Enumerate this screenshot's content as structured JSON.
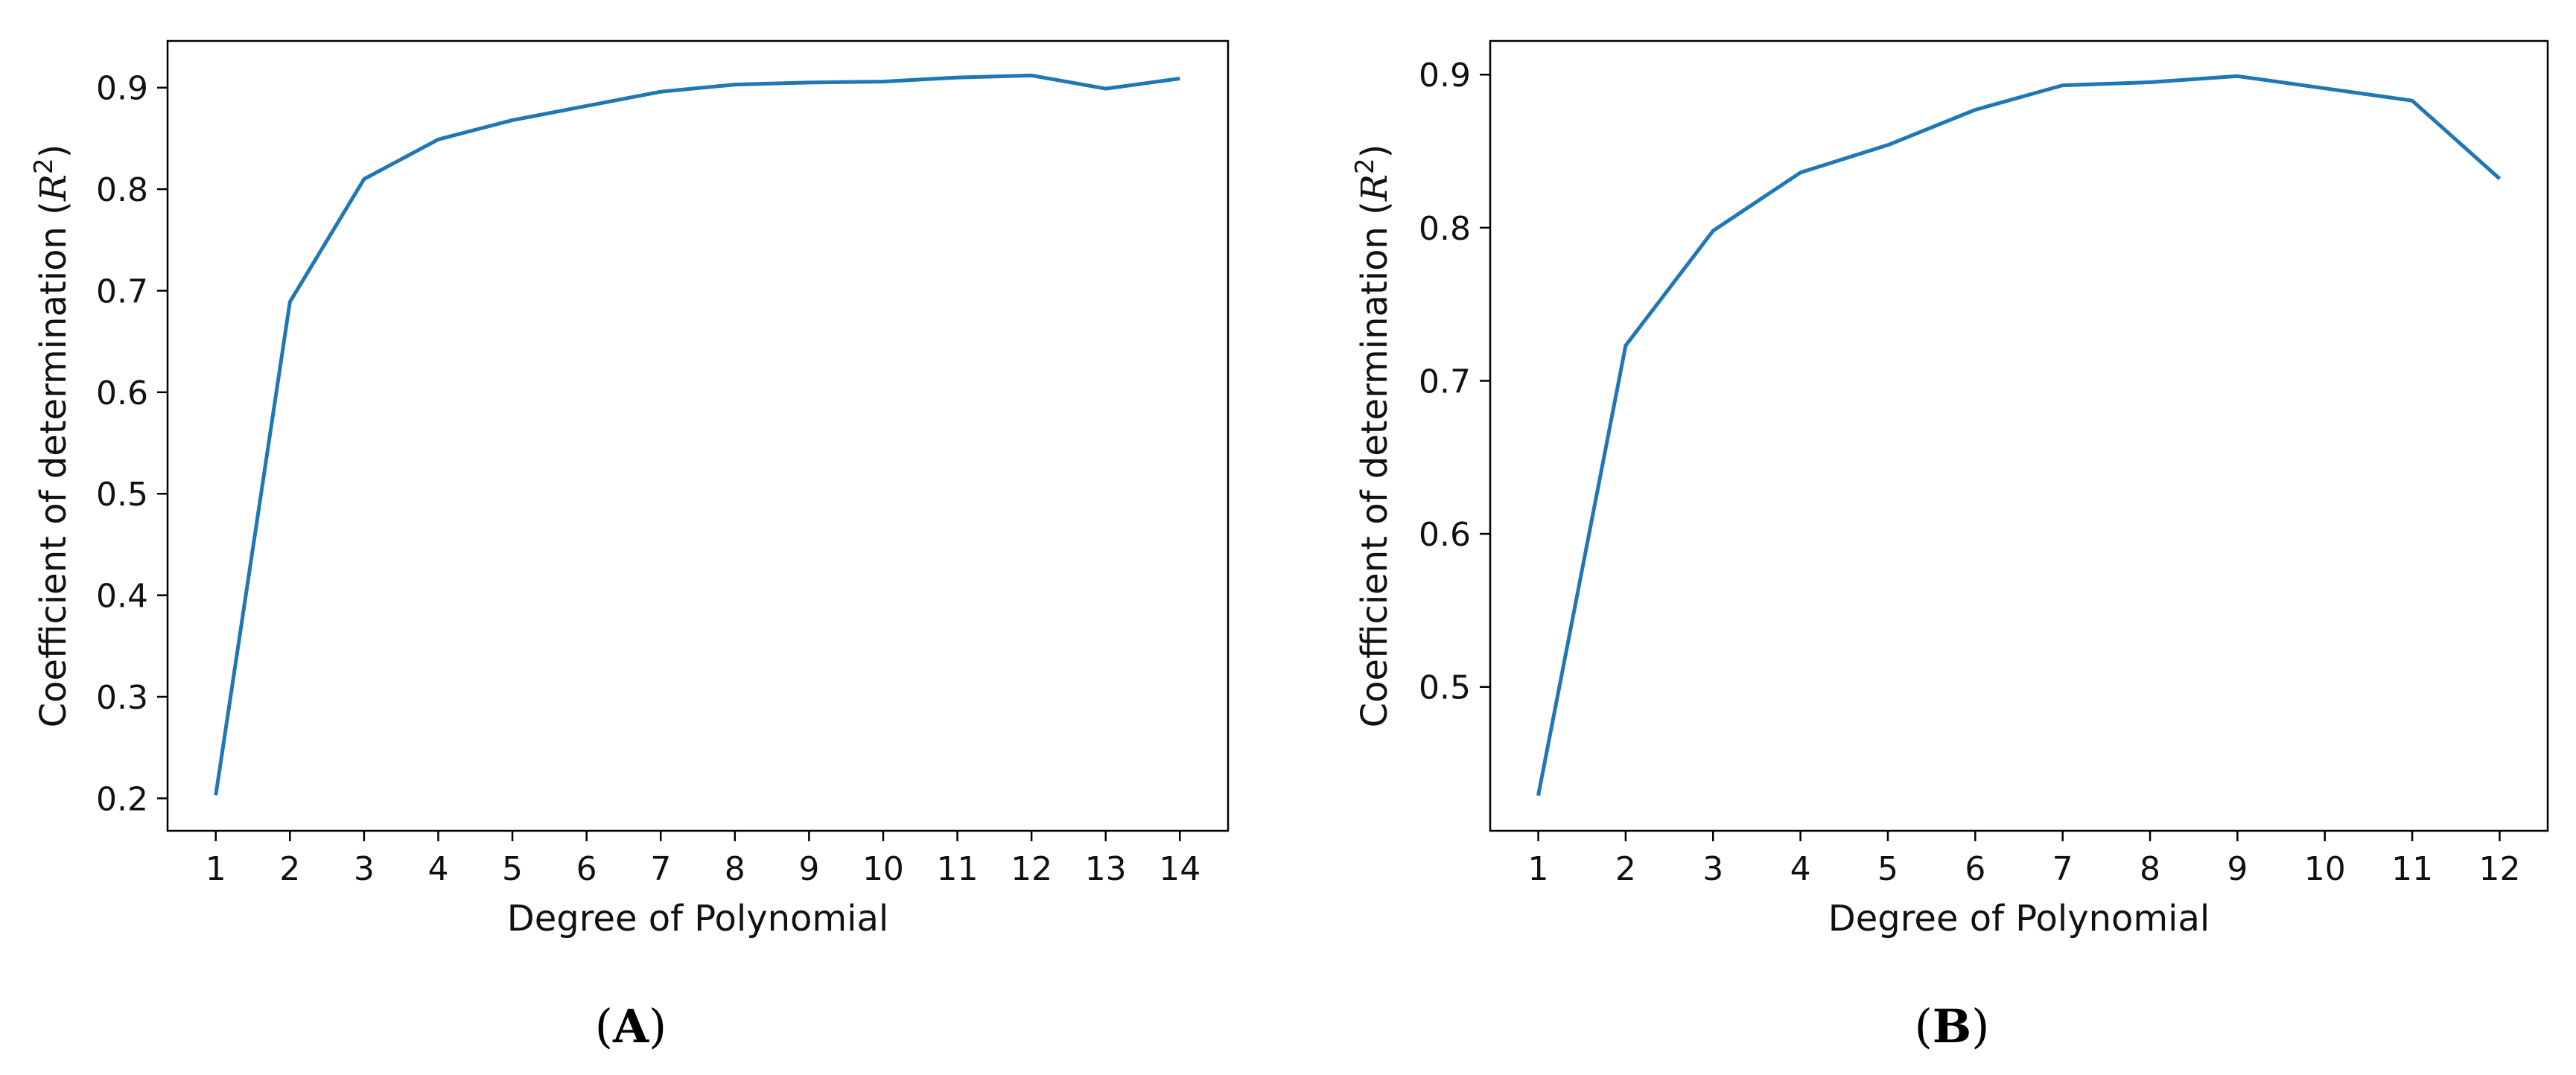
{
  "chart_data": [
    {
      "type": "line",
      "panel_label": "A",
      "xlabel": "Degree of Polynomial",
      "ylabel": {
        "prefix": "Coefficient of determination (",
        "symbol": "R",
        "superscript": "2",
        "suffix": ")"
      },
      "x": [
        1,
        2,
        3,
        4,
        5,
        6,
        7,
        8,
        9,
        10,
        11,
        12,
        13,
        14
      ],
      "series": [
        {
          "color": "#1f77b4",
          "values": [
            0.203,
            0.689,
            0.81,
            0.849,
            0.868,
            0.882,
            0.896,
            0.903,
            0.905,
            0.906,
            0.91,
            0.912,
            0.899,
            0.909
          ]
        }
      ],
      "xticks": [
        "1",
        "2",
        "3",
        "4",
        "5",
        "6",
        "7",
        "8",
        "9",
        "10",
        "11",
        "12",
        "13",
        "14"
      ],
      "yticks": [
        0.2,
        0.3,
        0.4,
        0.5,
        0.6,
        0.7,
        0.8,
        0.9
      ],
      "ytick_labels": [
        "0.2",
        "0.3",
        "0.4",
        "0.5",
        "0.6",
        "0.7",
        "0.8",
        "0.9"
      ],
      "xlim": [
        0.35,
        14.65
      ],
      "ylim": [
        0.168,
        0.946
      ],
      "grid": false
    },
    {
      "type": "line",
      "panel_label": "B",
      "xlabel": "Degree of Polynomial",
      "ylabel": {
        "prefix": "Coefficient of determination (",
        "symbol": "R",
        "superscript": "2",
        "suffix": ")"
      },
      "x": [
        1,
        2,
        3,
        4,
        5,
        6,
        7,
        8,
        9,
        10,
        11,
        12
      ],
      "series": [
        {
          "color": "#1f77b4",
          "values": [
            0.429,
            0.723,
            0.798,
            0.836,
            0.854,
            0.877,
            0.893,
            0.895,
            0.899,
            0.891,
            0.883,
            0.832
          ]
        }
      ],
      "xticks": [
        "1",
        "2",
        "3",
        "4",
        "5",
        "6",
        "7",
        "8",
        "9",
        "10",
        "11",
        "12"
      ],
      "yticks": [
        0.5,
        0.6,
        0.7,
        0.8,
        0.9
      ],
      "ytick_labels": [
        "0.5",
        "0.6",
        "0.7",
        "0.8",
        "0.9"
      ],
      "xlim": [
        0.45,
        12.55
      ],
      "ylim": [
        0.406,
        0.922
      ],
      "grid": false
    }
  ]
}
